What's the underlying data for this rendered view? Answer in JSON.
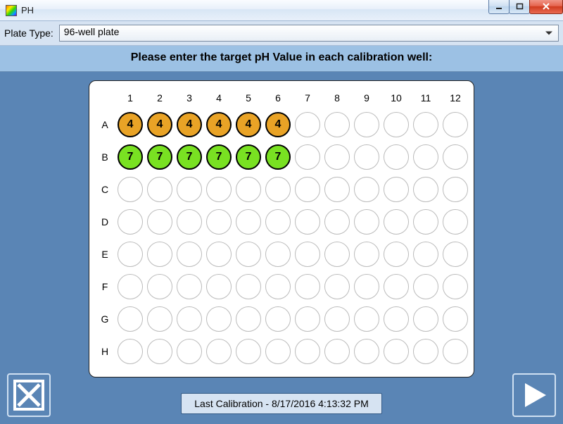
{
  "window": {
    "title": "PH"
  },
  "plateType": {
    "label": "Plate Type:",
    "selected": "96-well plate"
  },
  "instruction": "Please enter the target pH Value in each calibration well:",
  "plate": {
    "columns": [
      "1",
      "2",
      "3",
      "4",
      "5",
      "6",
      "7",
      "8",
      "9",
      "10",
      "11",
      "12"
    ],
    "rows": [
      "A",
      "B",
      "C",
      "D",
      "E",
      "F",
      "G",
      "H"
    ],
    "emptyWell": {
      "border": "#bbbbbb",
      "bg": "#ffffff"
    },
    "filledBorder": "#000000",
    "wells": {
      "A1": {
        "value": "4",
        "bg": "#e9a326"
      },
      "A2": {
        "value": "4",
        "bg": "#e9a326"
      },
      "A3": {
        "value": "4",
        "bg": "#e9a326"
      },
      "A4": {
        "value": "4",
        "bg": "#e9a326"
      },
      "A5": {
        "value": "4",
        "bg": "#e9a326"
      },
      "A6": {
        "value": "4",
        "bg": "#e9a326"
      },
      "B1": {
        "value": "7",
        "bg": "#79e122"
      },
      "B2": {
        "value": "7",
        "bg": "#79e122"
      },
      "B3": {
        "value": "7",
        "bg": "#79e122"
      },
      "B4": {
        "value": "7",
        "bg": "#79e122"
      },
      "B5": {
        "value": "7",
        "bg": "#79e122"
      },
      "B6": {
        "value": "7",
        "bg": "#79e122"
      }
    }
  },
  "lastCalibration": {
    "prefix": "Last Calibration  -  ",
    "timestamp": "8/17/2016 4:13:32 PM"
  },
  "colors": {
    "appBg": "#5a85b5",
    "headerBar": "#d6e3f2",
    "instructionBar": "#9cc1e4"
  }
}
